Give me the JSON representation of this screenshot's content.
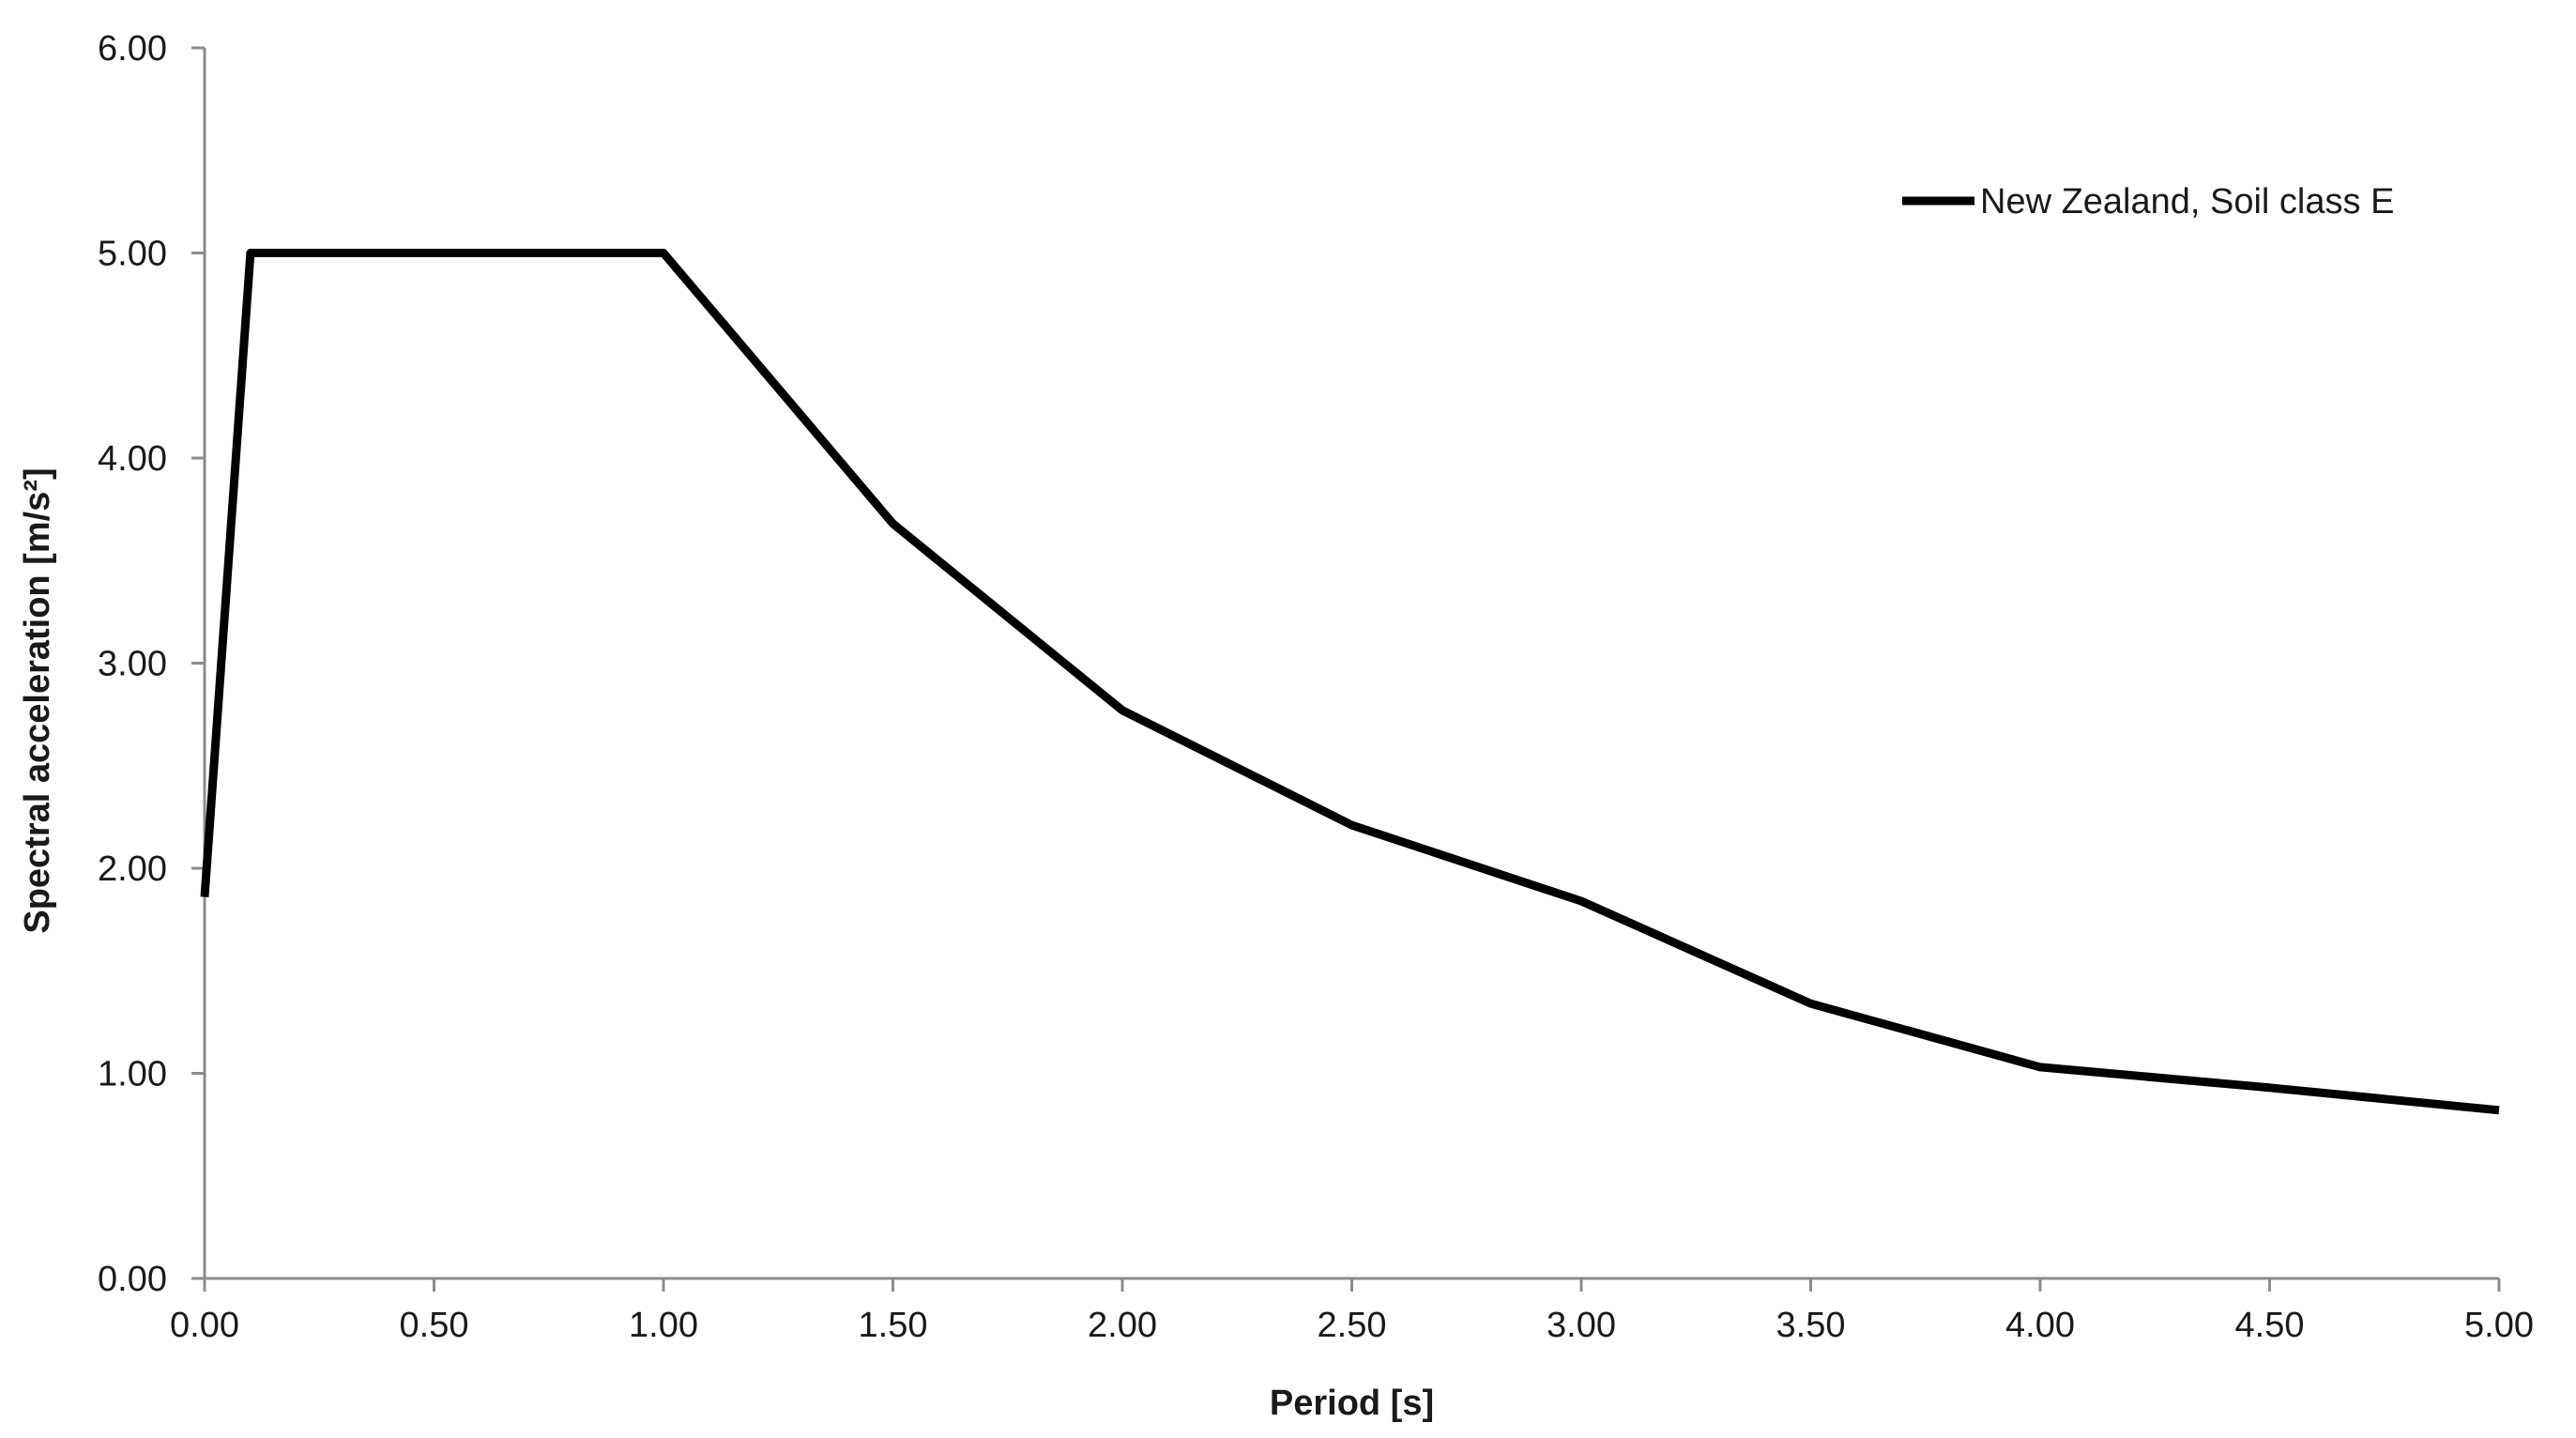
{
  "chart_data": {
    "type": "line",
    "title": "",
    "xlabel": "Period [s]",
    "ylabel": "Spectral acceleration [m/s²]",
    "xlim": [
      0,
      5
    ],
    "ylim": [
      0,
      6
    ],
    "x_ticks": [
      "0.00",
      "0.50",
      "1.00",
      "1.50",
      "2.00",
      "2.50",
      "3.00",
      "3.50",
      "4.00",
      "4.50",
      "5.00"
    ],
    "y_ticks": [
      "0.00",
      "1.00",
      "2.00",
      "3.00",
      "4.00",
      "5.00",
      "6.00"
    ],
    "grid": false,
    "legend_position": "top-right",
    "series": [
      {
        "name": "New Zealand, Soil class E",
        "color": "#000000",
        "x": [
          0.0,
          0.1,
          1.0,
          1.5,
          2.0,
          2.5,
          3.0,
          3.5,
          4.0,
          4.5,
          5.0
        ],
        "y": [
          1.86,
          5.0,
          5.0,
          3.68,
          2.77,
          2.21,
          1.84,
          1.34,
          1.03,
          0.93,
          0.82
        ]
      }
    ]
  }
}
